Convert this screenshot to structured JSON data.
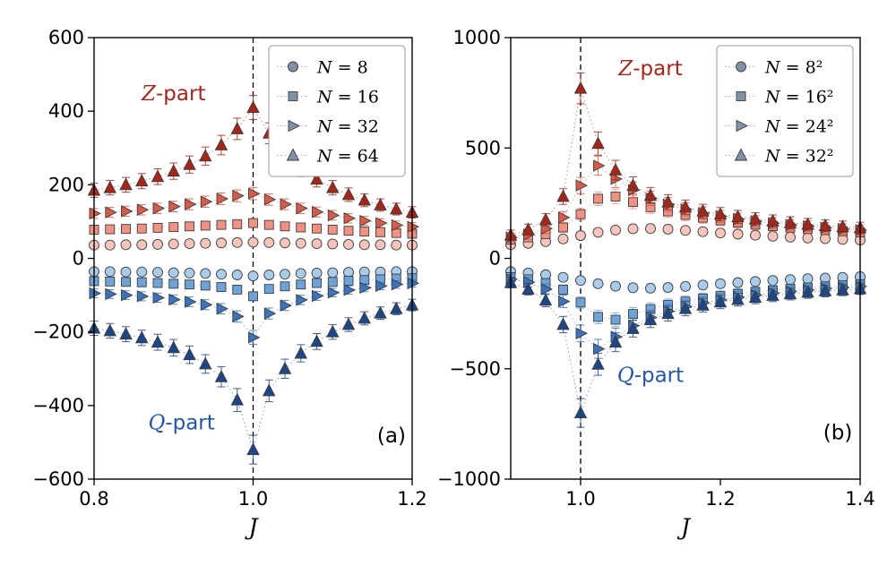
{
  "figure": {
    "background": "#ffffff"
  },
  "style": {
    "red_shades": [
      "#f7c5bc",
      "#ef9183",
      "#d55c4b",
      "#a3261b"
    ],
    "blue_shades": [
      "#abcbea",
      "#6fa3d8",
      "#3c73b9",
      "#1e4584"
    ],
    "marker_edge": "#3d3d3d",
    "legend_marker_fill": "#8191a6",
    "legend_line_color": "#aaaaaa",
    "vline_color": "#000000",
    "annotation_red": "#a3261b",
    "annotation_blue": "#2456a5"
  },
  "chart_data": [
    {
      "type": "scatter",
      "panel_label": "(a)",
      "xlabel": "J",
      "xlim": [
        0.8,
        1.2
      ],
      "ylim": [
        -600,
        600
      ],
      "xticks": [
        0.8,
        1.0,
        1.2
      ],
      "xtick_labels": [
        "0.8",
        "1.0",
        "1.2"
      ],
      "yticks": [
        -600,
        -400,
        -200,
        0,
        200,
        400,
        600
      ],
      "vline_x": 1.0,
      "grid": false,
      "legend_position": "top-right",
      "legend": [
        "N = 8",
        "N = 16",
        "N = 32",
        "N = 64"
      ],
      "annotations": [
        {
          "text": "Z-part",
          "color": "#a3261b",
          "x": 0.9,
          "y": 430,
          "plain": false
        },
        {
          "text": "Q-part",
          "color": "#2456a5",
          "x": 0.91,
          "y": -465,
          "plain": false
        },
        {
          "text": "(a)",
          "color": "#000000",
          "x": 1.174,
          "y": -500,
          "plain": true
        }
      ],
      "x": [
        0.8,
        0.82,
        0.84,
        0.86,
        0.88,
        0.9,
        0.92,
        0.94,
        0.96,
        0.98,
        1.0,
        1.02,
        1.04,
        1.06,
        1.08,
        1.1,
        1.12,
        1.14,
        1.16,
        1.18,
        1.2
      ],
      "series": [
        {
          "name": "N = 8",
          "part": "Z-part",
          "marker": "circle",
          "color": "#f7c5bc",
          "yerr_frac": 0.06,
          "yerr_base": 5,
          "values": [
            36,
            36,
            37,
            37,
            38,
            39,
            40,
            41,
            42,
            43,
            44,
            43,
            42,
            41,
            40,
            39,
            38,
            37,
            37,
            36,
            36
          ]
        },
        {
          "name": "N = 16",
          "part": "Z-part",
          "marker": "square",
          "color": "#ef9183",
          "yerr_frac": 0.06,
          "yerr_base": 5,
          "values": [
            78,
            79,
            80,
            81,
            83,
            85,
            87,
            89,
            91,
            93,
            96,
            91,
            87,
            84,
            81,
            78,
            75,
            73,
            71,
            69,
            67
          ]
        },
        {
          "name": "N = 32",
          "part": "Z-part",
          "marker": "triangle-right",
          "color": "#d55c4b",
          "yerr_frac": 0.06,
          "yerr_base": 6,
          "values": [
            122,
            125,
            128,
            132,
            136,
            141,
            147,
            154,
            162,
            170,
            176,
            160,
            147,
            136,
            126,
            117,
            109,
            102,
            96,
            90,
            86
          ]
        },
        {
          "name": "N = 64",
          "part": "Z-part",
          "marker": "triangle-up",
          "color": "#a3261b",
          "yerr_frac": 0.06,
          "yerr_base": 8,
          "values": [
            185,
            192,
            200,
            210,
            222,
            237,
            255,
            278,
            308,
            352,
            410,
            340,
            285,
            245,
            215,
            192,
            173,
            158,
            145,
            134,
            125
          ]
        },
        {
          "name": "N = 8",
          "part": "Q-part",
          "marker": "circle",
          "color": "#abcbea",
          "yerr_frac": 0.06,
          "yerr_base": 5,
          "values": [
            -36,
            -36,
            -37,
            -37,
            -38,
            -39,
            -40,
            -41,
            -43,
            -45,
            -48,
            -45,
            -43,
            -41,
            -40,
            -39,
            -38,
            -37,
            -37,
            -36,
            -36
          ]
        },
        {
          "name": "N = 16",
          "part": "Q-part",
          "marker": "square",
          "color": "#6fa3d8",
          "yerr_frac": 0.06,
          "yerr_base": 5,
          "values": [
            -62,
            -63,
            -64,
            -65,
            -67,
            -69,
            -71,
            -74,
            -78,
            -85,
            -103,
            -83,
            -76,
            -71,
            -67,
            -64,
            -61,
            -59,
            -57,
            -55,
            -54
          ]
        },
        {
          "name": "N = 32",
          "part": "Q-part",
          "marker": "triangle-right",
          "color": "#3c73b9",
          "yerr_frac": 0.06,
          "yerr_base": 6,
          "values": [
            -95,
            -97,
            -100,
            -103,
            -107,
            -112,
            -118,
            -126,
            -137,
            -158,
            -215,
            -150,
            -128,
            -113,
            -102,
            -93,
            -86,
            -80,
            -75,
            -71,
            -68
          ]
        },
        {
          "name": "N = 64",
          "part": "Q-part",
          "marker": "triangle-up",
          "color": "#1e4584",
          "yerr_frac": 0.06,
          "yerr_base": 8,
          "values": [
            -190,
            -197,
            -206,
            -216,
            -228,
            -243,
            -262,
            -287,
            -322,
            -385,
            -520,
            -360,
            -300,
            -258,
            -226,
            -200,
            -180,
            -163,
            -149,
            -137,
            -127
          ]
        }
      ]
    },
    {
      "type": "scatter",
      "panel_label": "(b)",
      "xlabel": "J",
      "xlim": [
        0.9,
        1.4
      ],
      "ylim": [
        -1000,
        1000
      ],
      "xticks": [
        1.0,
        1.2,
        1.4
      ],
      "xtick_labels": [
        "1.0",
        "1.2",
        "1.4"
      ],
      "yticks": [
        -1000,
        -500,
        0,
        500,
        1000
      ],
      "vline_x": 1.0,
      "grid": false,
      "legend_position": "top-right",
      "legend": [
        "N = 8²",
        "N = 16²",
        "N = 24²",
        "N = 32²"
      ],
      "annotations": [
        {
          "text": "Z-part",
          "color": "#a3261b",
          "x": 1.1,
          "y": 830,
          "plain": false
        },
        {
          "text": "Q-part",
          "color": "#2456a5",
          "x": 1.1,
          "y": -560,
          "plain": false
        },
        {
          "text": "(b)",
          "color": "#000000",
          "x": 1.368,
          "y": -820,
          "plain": true
        }
      ],
      "x": [
        0.9,
        0.925,
        0.95,
        0.975,
        1.0,
        1.025,
        1.05,
        1.075,
        1.1,
        1.125,
        1.15,
        1.175,
        1.2,
        1.225,
        1.25,
        1.275,
        1.3,
        1.325,
        1.35,
        1.375,
        1.4
      ],
      "series": [
        {
          "name": "N = 8²",
          "part": "Z-part",
          "marker": "circle",
          "color": "#f7c5bc",
          "yerr_frac": 0.07,
          "yerr_base": 10,
          "values": [
            62,
            68,
            76,
            88,
            103,
            118,
            128,
            134,
            135,
            132,
            127,
            121,
            115,
            110,
            105,
            100,
            96,
            92,
            89,
            86,
            83
          ]
        },
        {
          "name": "N = 16²",
          "part": "Z-part",
          "marker": "square",
          "color": "#ef9183",
          "yerr_frac": 0.07,
          "yerr_base": 12,
          "values": [
            85,
            95,
            110,
            140,
            200,
            270,
            280,
            255,
            232,
            213,
            197,
            184,
            172,
            162,
            153,
            146,
            139,
            133,
            128,
            123,
            118
          ]
        },
        {
          "name": "N = 24²",
          "part": "Z-part",
          "marker": "triangle-right",
          "color": "#d55c4b",
          "yerr_frac": 0.07,
          "yerr_base": 14,
          "values": [
            95,
            108,
            135,
            185,
            330,
            420,
            360,
            310,
            272,
            244,
            222,
            205,
            190,
            178,
            168,
            159,
            151,
            145,
            139,
            133,
            128
          ]
        },
        {
          "name": "N = 32²",
          "part": "Z-part",
          "marker": "triangle-up",
          "color": "#a3261b",
          "yerr_frac": 0.07,
          "yerr_base": 16,
          "values": [
            105,
            130,
            175,
            280,
            770,
            520,
            400,
            330,
            285,
            255,
            232,
            214,
            200,
            188,
            178,
            169,
            161,
            154,
            148,
            143,
            138
          ]
        },
        {
          "name": "N = 8²",
          "part": "Q-part",
          "marker": "circle",
          "color": "#abcbea",
          "yerr_frac": 0.07,
          "yerr_base": 10,
          "values": [
            -60,
            -66,
            -74,
            -86,
            -100,
            -115,
            -126,
            -133,
            -135,
            -132,
            -127,
            -121,
            -115,
            -110,
            -105,
            -100,
            -96,
            -92,
            -89,
            -86,
            -83
          ]
        },
        {
          "name": "N = 16²",
          "part": "Q-part",
          "marker": "square",
          "color": "#6fa3d8",
          "yerr_frac": 0.07,
          "yerr_base": 12,
          "values": [
            -85,
            -95,
            -112,
            -142,
            -200,
            -265,
            -278,
            -252,
            -230,
            -211,
            -196,
            -182,
            -171,
            -161,
            -152,
            -145,
            -138,
            -132,
            -127,
            -122,
            -117
          ]
        },
        {
          "name": "N = 24²",
          "part": "Q-part",
          "marker": "triangle-right",
          "color": "#3c73b9",
          "yerr_frac": 0.07,
          "yerr_base": 14,
          "values": [
            -95,
            -108,
            -140,
            -195,
            -340,
            -410,
            -355,
            -305,
            -268,
            -240,
            -219,
            -202,
            -188,
            -176,
            -166,
            -157,
            -150,
            -143,
            -137,
            -132,
            -127
          ]
        },
        {
          "name": "N = 32²",
          "part": "Q-part",
          "marker": "triangle-up",
          "color": "#1e4584",
          "yerr_frac": 0.07,
          "yerr_base": 16,
          "values": [
            -110,
            -140,
            -190,
            -300,
            -700,
            -480,
            -380,
            -318,
            -278,
            -250,
            -228,
            -212,
            -198,
            -187,
            -177,
            -168,
            -161,
            -154,
            -148,
            -143,
            -138
          ]
        }
      ]
    }
  ]
}
